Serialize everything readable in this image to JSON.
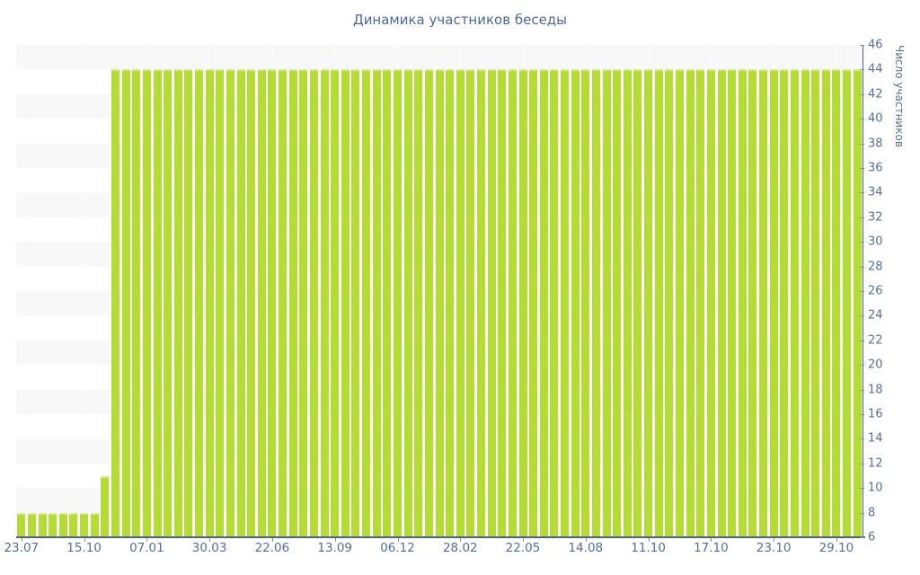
{
  "chart_data": {
    "type": "bar",
    "title": "Динамика участников беседы",
    "xlabel": "",
    "ylabel": "Число участников",
    "ylim": [
      6,
      46
    ],
    "ytick_step": 2,
    "grid": "horizontal-stripe-bands",
    "legend": "none",
    "x_tick_labels": [
      "23.07",
      "15.10",
      "07.01",
      "30.03",
      "22.06",
      "13.09",
      "06.12",
      "28.02",
      "22.05",
      "14.08",
      "11.10",
      "17.10",
      "23.10",
      "29.10"
    ],
    "x_tick_every": 6,
    "values": [
      8,
      8,
      8,
      8,
      8,
      8,
      8,
      8,
      11,
      44,
      44,
      44,
      44,
      44,
      44,
      44,
      44,
      44,
      44,
      44,
      44,
      44,
      44,
      44,
      44,
      44,
      44,
      44,
      44,
      44,
      44,
      44,
      44,
      44,
      44,
      44,
      44,
      44,
      44,
      44,
      44,
      44,
      44,
      44,
      44,
      44,
      44,
      44,
      44,
      44,
      44,
      44,
      44,
      44,
      44,
      44,
      44,
      44,
      44,
      44,
      44,
      44,
      44,
      44,
      44,
      44,
      44,
      44,
      44,
      44,
      44,
      44,
      44,
      44,
      44,
      44,
      44,
      44,
      44,
      44,
      44
    ],
    "colors": {
      "background": "#ffffff",
      "stripe": "#f8f8f8",
      "bar": "#b5dc34",
      "bar_edge": "#d3ea8e",
      "axis_line": "#47648f",
      "tick_mark": "#8a97ad",
      "label_text": "#52709f",
      "title_text": "#4a68a1"
    }
  }
}
